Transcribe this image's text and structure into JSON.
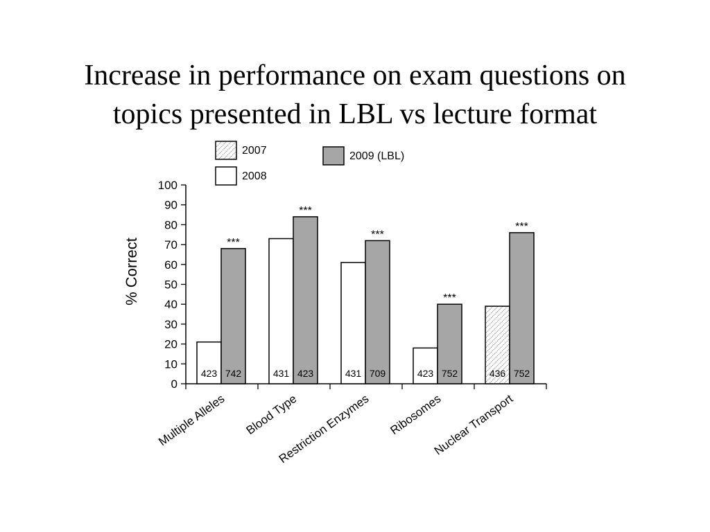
{
  "chart_data": {
    "type": "bar",
    "title": "Increase in performance on exam questions on topics presented in LBL vs lecture format",
    "ylabel": "% Correct",
    "categories": [
      "Multiple Alleles",
      "Blood Type",
      "Restriction Enzymes",
      "Ribosomes",
      "Nuclear Transport"
    ],
    "series": [
      {
        "name": "2007",
        "color": "#ffffff",
        "hatch": true,
        "values": [
          null,
          null,
          null,
          null,
          39
        ],
        "sample_sizes": [
          null,
          null,
          null,
          null,
          436
        ]
      },
      {
        "name": "2008",
        "color": "#ffffff",
        "hatch": false,
        "values": [
          21,
          73,
          61,
          18,
          null
        ],
        "sample_sizes": [
          423,
          431,
          431,
          423,
          null
        ]
      },
      {
        "name": "2009 (LBL)",
        "color": "#a6a6a6",
        "hatch": false,
        "values": [
          68,
          84,
          72,
          40,
          76
        ],
        "sample_sizes": [
          742,
          423,
          709,
          752,
          752
        ],
        "annotations": [
          "***",
          "***",
          "***",
          "***",
          "***"
        ]
      }
    ],
    "ylim": [
      0,
      100
    ],
    "yticks": [
      0,
      10,
      20,
      30,
      40,
      50,
      60,
      70,
      80,
      90,
      100
    ],
    "grid": false
  }
}
